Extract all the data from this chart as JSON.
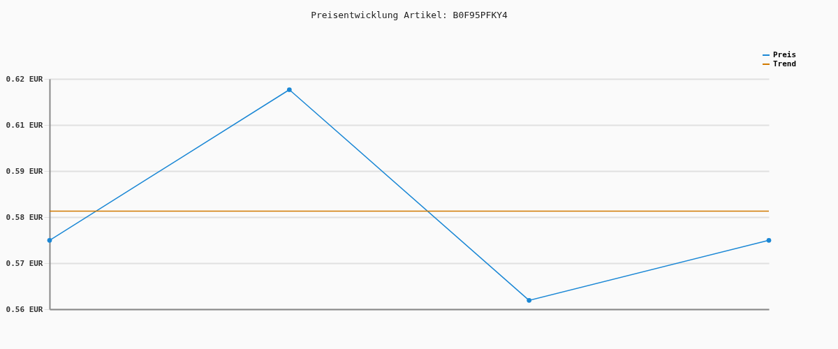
{
  "chart_data": {
    "type": "line",
    "title": "Preisentwicklung Artikel: B0F95PFKY4",
    "categories": [
      null,
      null,
      null,
      null
    ],
    "series": [
      {
        "name": "Preis",
        "color": "#1a87d5",
        "values": [
          0.5772,
          0.6148,
          0.5622,
          0.5772
        ],
        "marker": "circle"
      },
      {
        "name": "Trend",
        "color": "#d17a00",
        "values": [
          0.5845,
          0.5845,
          0.5845,
          0.5845
        ],
        "marker": "none"
      }
    ],
    "ylim": [
      0.56,
      0.6175
    ],
    "yticks": [
      {
        "value": 0.56,
        "label": "0.56 EUR"
      },
      {
        "value": 0.5715,
        "label": "0.57 EUR"
      },
      {
        "value": 0.583,
        "label": "0.58 EUR"
      },
      {
        "value": 0.5945,
        "label": "0.59 EUR"
      },
      {
        "value": 0.606,
        "label": "0.61 EUR"
      },
      {
        "value": 0.6175,
        "label": "0.62 EUR"
      }
    ],
    "grid": "y",
    "legend": "top right",
    "tick_labels": "y",
    "line_style": "solid"
  }
}
